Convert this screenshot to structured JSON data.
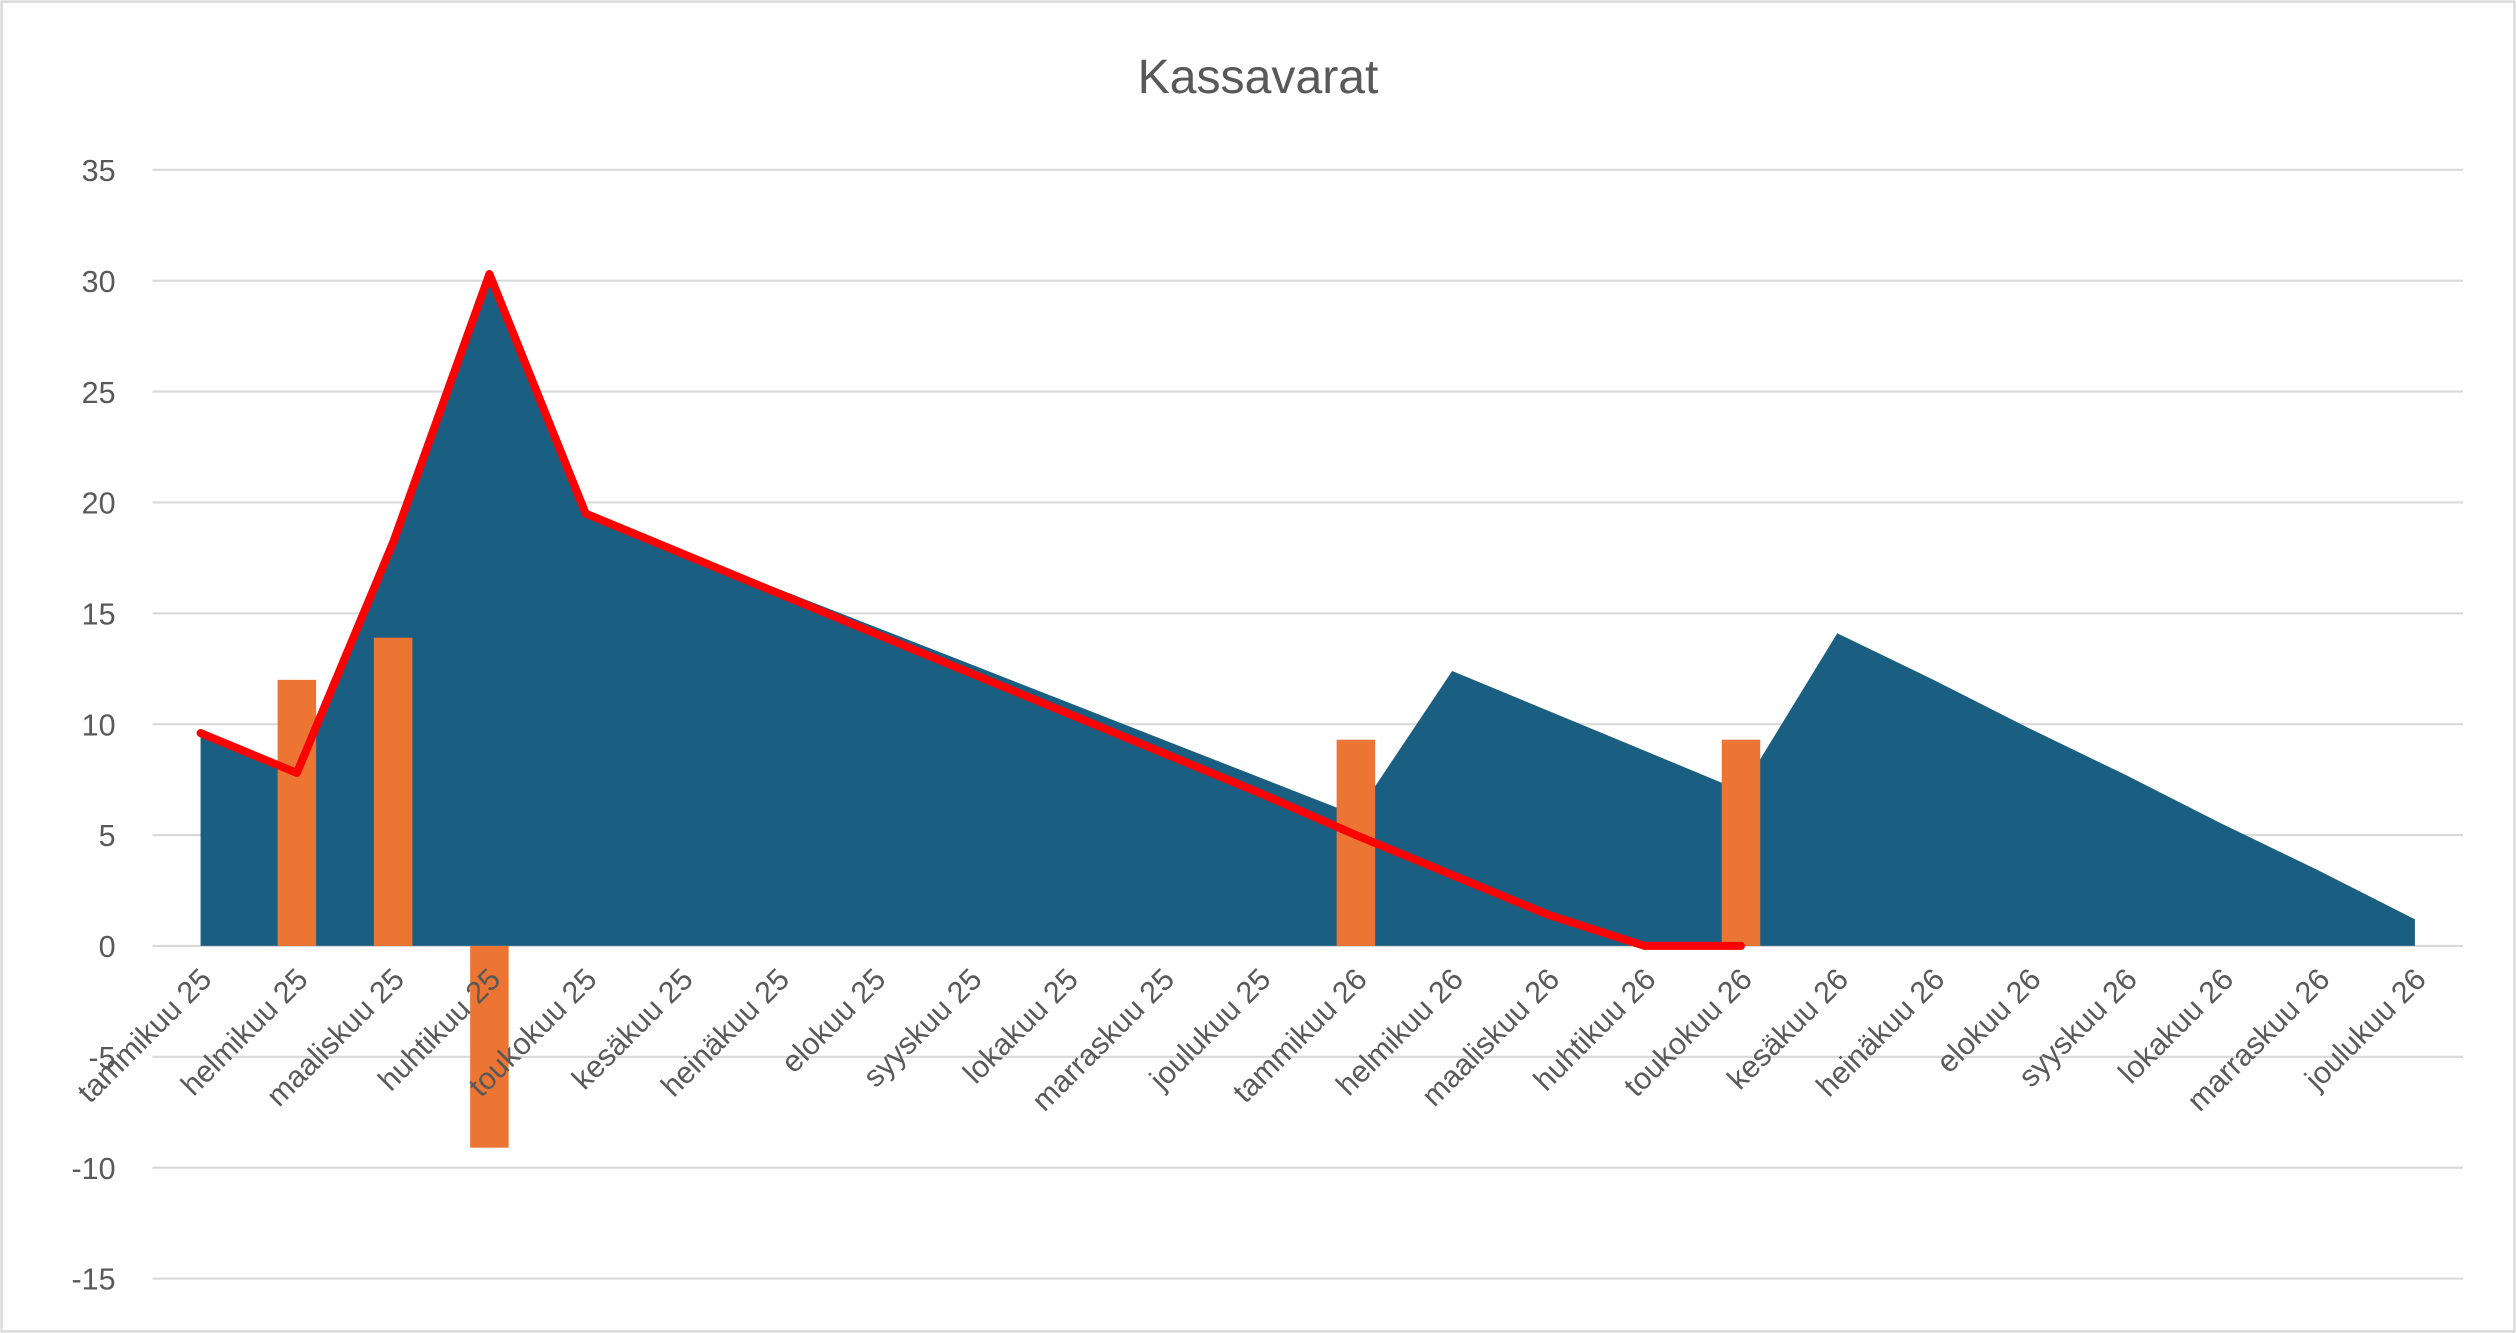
{
  "chart_data": {
    "type": "combo",
    "title": "Kassavarat",
    "categories": [
      "tammikuu 25",
      "helmikuu 25",
      "maaliskuu 25",
      "huhtikuu 25",
      "toukokuu 25",
      "kesäkuu 25",
      "heinäkuu 25",
      "elokuu 25",
      "syyskuu 25",
      "lokakuu 25",
      "marraskuu 25",
      "joulukuu 25",
      "tammikuu 26",
      "helmikuu 26",
      "maaliskuu 26",
      "huhtikuu 26",
      "toukokuu 26",
      "kesäkuu 26",
      "heinäkuu 26",
      "elokuu 26",
      "syyskuu 26",
      "lokakuu 26",
      "marraskuu 26",
      "joulukuu 26"
    ],
    "series": [
      {
        "type": "area",
        "color": "#1a5f82",
        "values": [
          9.5,
          7.8,
          18.0,
          30.3,
          19.5,
          17.8,
          16.1,
          14.4,
          12.7,
          11.0,
          9.3,
          7.6,
          5.9,
          12.4,
          10.6,
          8.8,
          7.0,
          14.1,
          12.0,
          9.8,
          7.7,
          5.5,
          3.4,
          1.2
        ]
      },
      {
        "type": "bar",
        "color": "#ed7533",
        "values": [
          null,
          12.0,
          13.9,
          -9.1,
          null,
          null,
          null,
          null,
          null,
          null,
          null,
          null,
          9.3,
          null,
          null,
          null,
          9.3,
          null,
          null,
          null,
          null,
          null,
          null,
          null
        ]
      },
      {
        "type": "line",
        "color": "#ff0000",
        "values": [
          9.6,
          7.8,
          18.2,
          30.3,
          19.5,
          17.7,
          15.9,
          14.1,
          12.3,
          10.5,
          8.7,
          6.9,
          5.0,
          3.2,
          1.4,
          0,
          0,
          null,
          null,
          null,
          null,
          null,
          null,
          null
        ]
      }
    ],
    "ylim": [
      -15,
      35
    ],
    "yticks": [
      -15,
      -10,
      -5,
      0,
      5,
      10,
      15,
      20,
      25,
      30,
      35
    ],
    "grid": true
  }
}
